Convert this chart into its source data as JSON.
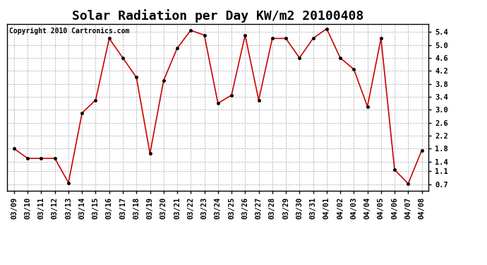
{
  "title": "Solar Radiation per Day KW/m2 20100408",
  "copyright": "Copyright 2010 Cartronics.com",
  "x_labels": [
    "03/09",
    "03/10",
    "03/11",
    "03/12",
    "03/13",
    "03/14",
    "03/15",
    "03/16",
    "03/17",
    "03/18",
    "03/19",
    "03/20",
    "03/21",
    "03/22",
    "03/23",
    "03/24",
    "03/25",
    "03/26",
    "03/27",
    "03/28",
    "03/29",
    "03/30",
    "03/31",
    "04/01",
    "04/02",
    "04/03",
    "04/04",
    "04/05",
    "04/06",
    "04/07",
    "04/08"
  ],
  "y_values": [
    1.8,
    1.5,
    1.5,
    1.5,
    0.75,
    2.9,
    3.3,
    5.2,
    4.6,
    4.0,
    1.65,
    3.9,
    4.9,
    5.45,
    5.3,
    3.2,
    3.45,
    5.3,
    3.3,
    5.2,
    5.2,
    4.6,
    5.2,
    5.5,
    4.6,
    4.25,
    3.1,
    5.2,
    1.15,
    0.72,
    1.75
  ],
  "line_color": "#cc0000",
  "marker_color": "#000000",
  "marker_size": 3,
  "background_color": "#ffffff",
  "grid_color": "#aaaaaa",
  "yticks": [
    0.7,
    1.1,
    1.4,
    1.8,
    2.2,
    2.6,
    3.0,
    3.4,
    3.8,
    4.2,
    4.6,
    5.0,
    5.4
  ],
  "ylim": [
    0.5,
    5.65
  ],
  "title_fontsize": 13,
  "copyright_fontsize": 7,
  "tick_fontsize": 7.5
}
